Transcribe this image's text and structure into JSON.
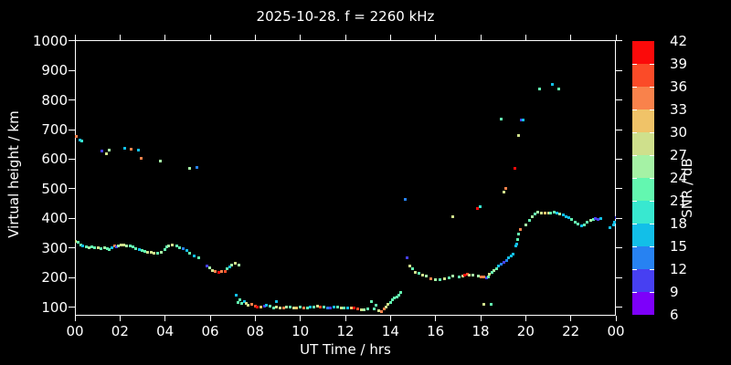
{
  "window": {
    "background": "#000000",
    "foreground": "#ffffff"
  },
  "chart_data": {
    "type": "scatter",
    "title": "2025-10-28. f = 2260 kHz",
    "xlabel": "UT Time / hrs",
    "ylabel": "Virtual height / km",
    "grid": false,
    "x_axis": {
      "range_hours": [
        0,
        24
      ],
      "tick_hours": [
        0,
        2,
        4,
        6,
        8,
        10,
        12,
        14,
        16,
        18,
        20,
        22,
        24
      ],
      "tick_labels": [
        "00",
        "02",
        "04",
        "06",
        "08",
        "10",
        "12",
        "14",
        "16",
        "18",
        "20",
        "22",
        "00"
      ]
    },
    "y_axis": {
      "range_km_at_ticks": [
        100,
        1000
      ],
      "tick_km": [
        100,
        200,
        300,
        400,
        500,
        600,
        700,
        800,
        900,
        1000
      ],
      "tick_labels": [
        "100",
        "200",
        "300",
        "400",
        "500",
        "600",
        "700",
        "800",
        "900",
        "1000"
      ]
    },
    "colorbar": {
      "label": "SNR / dB",
      "min": 6,
      "max": 42,
      "step": 3,
      "tick_labels": [
        "42",
        "39",
        "36",
        "33",
        "30",
        "27",
        "24",
        "21",
        "18",
        "15",
        "12",
        "9",
        "6"
      ],
      "colors_top_to_bottom": [
        "#fb0a0a",
        "#fb4b28",
        "#f9824b",
        "#f0c368",
        "#cfe08c",
        "#a5f2a5",
        "#63f7b0",
        "#38e8d0",
        "#12bfe8",
        "#2782f2",
        "#4740f2",
        "#7d00fa"
      ]
    },
    "points_hour_km_snr": [
      [
        0.02,
        322,
        28.5
      ],
      [
        0.15,
        318,
        22.5
      ],
      [
        0.26,
        311,
        22.5
      ],
      [
        0.36,
        306,
        16.5
      ],
      [
        0.49,
        304,
        22.5
      ],
      [
        0.62,
        301,
        25.5
      ],
      [
        0.76,
        304,
        22.5
      ],
      [
        0.89,
        301,
        22.5
      ],
      [
        1.03,
        301,
        28.5
      ],
      [
        1.16,
        297,
        22.5
      ],
      [
        1.3,
        301,
        25.5
      ],
      [
        1.42,
        297,
        22.5
      ],
      [
        1.53,
        296,
        22.5
      ],
      [
        1.66,
        300,
        16.5
      ],
      [
        1.77,
        306,
        34.5
      ],
      [
        1.84,
        303,
        10.5
      ],
      [
        1.93,
        308,
        25.5
      ],
      [
        2.04,
        311,
        28.5
      ],
      [
        2.18,
        311,
        28.5
      ],
      [
        2.3,
        308,
        25.5
      ],
      [
        2.44,
        306,
        22.5
      ],
      [
        2.58,
        303,
        22.5
      ],
      [
        2.7,
        298,
        22.5
      ],
      [
        2.85,
        294,
        16.5
      ],
      [
        2.99,
        291,
        22.5
      ],
      [
        3.12,
        288,
        22.5
      ],
      [
        3.23,
        285,
        28.5
      ],
      [
        3.37,
        285,
        28.5
      ],
      [
        3.5,
        283,
        28.5
      ],
      [
        3.67,
        283,
        22.5
      ],
      [
        3.84,
        286,
        25.5
      ],
      [
        4.0,
        296,
        22.5
      ],
      [
        4.08,
        304,
        22.5
      ],
      [
        4.16,
        307,
        25.5
      ],
      [
        4.3,
        311,
        28.5
      ],
      [
        4.5,
        308,
        22.5
      ],
      [
        4.66,
        301,
        22.5
      ],
      [
        4.82,
        298,
        13.5
      ],
      [
        4.96,
        291,
        16.5
      ],
      [
        5.1,
        282,
        22.5
      ],
      [
        5.3,
        273,
        16.5
      ],
      [
        5.5,
        266,
        22.5
      ],
      [
        5.84,
        239,
        10.5
      ],
      [
        5.96,
        232,
        25.5
      ],
      [
        6.1,
        224,
        28.5
      ],
      [
        6.24,
        220,
        34.5
      ],
      [
        6.37,
        217,
        40.5
      ],
      [
        6.5,
        220,
        34.5
      ],
      [
        6.65,
        222,
        37.5
      ],
      [
        6.77,
        229,
        22.5
      ],
      [
        6.88,
        235,
        16.5
      ],
      [
        6.97,
        243,
        25.5
      ],
      [
        7.12,
        248,
        28.5
      ],
      [
        7.26,
        243,
        25.5
      ],
      [
        7.15,
        140,
        16.5
      ],
      [
        7.22,
        116,
        22.5
      ],
      [
        7.3,
        125,
        22.5
      ],
      [
        7.38,
        113,
        22.5
      ],
      [
        7.5,
        119,
        16.5
      ],
      [
        7.6,
        112,
        28.5
      ],
      [
        7.7,
        106,
        28.5
      ],
      [
        7.85,
        109,
        34.5
      ],
      [
        8.0,
        103,
        37.5
      ],
      [
        8.1,
        101,
        40.5
      ],
      [
        8.25,
        100,
        31.5
      ],
      [
        8.4,
        103,
        10.5
      ],
      [
        8.5,
        106,
        16.5
      ],
      [
        8.67,
        103,
        22.5
      ],
      [
        8.8,
        98,
        22.5
      ],
      [
        8.95,
        118,
        16.5
      ],
      [
        8.95,
        101,
        28.5
      ],
      [
        9.1,
        97,
        28.5
      ],
      [
        9.25,
        99,
        34.5
      ],
      [
        9.4,
        101,
        25.5
      ],
      [
        9.55,
        100,
        22.5
      ],
      [
        9.7,
        97,
        28.5
      ],
      [
        9.85,
        99,
        31.5
      ],
      [
        10.0,
        100,
        22.5
      ],
      [
        10.15,
        98,
        34.5
      ],
      [
        10.3,
        97,
        22.5
      ],
      [
        10.45,
        100,
        16.5
      ],
      [
        10.6,
        102,
        22.5
      ],
      [
        10.75,
        103,
        28.5
      ],
      [
        10.9,
        100,
        37.5
      ],
      [
        11.05,
        100,
        22.5
      ],
      [
        11.2,
        97,
        13.5
      ],
      [
        11.35,
        97,
        10.5
      ],
      [
        11.5,
        100,
        16.5
      ],
      [
        11.65,
        100,
        22.5
      ],
      [
        11.8,
        98,
        28.5
      ],
      [
        11.95,
        97,
        22.5
      ],
      [
        12.1,
        99,
        16.5
      ],
      [
        12.25,
        97,
        31.5
      ],
      [
        12.4,
        97,
        40.5
      ],
      [
        12.55,
        94,
        37.5
      ],
      [
        12.7,
        92,
        28.5
      ],
      [
        12.85,
        91,
        25.5
      ],
      [
        13.0,
        93,
        22.5
      ],
      [
        13.15,
        118,
        22.5
      ],
      [
        13.27,
        94,
        22.5
      ],
      [
        13.37,
        106,
        22.5
      ],
      [
        13.47,
        89,
        28.5
      ],
      [
        13.6,
        86,
        34.5
      ],
      [
        13.74,
        94,
        34.5
      ],
      [
        13.8,
        102,
        28.5
      ],
      [
        13.87,
        109,
        28.5
      ],
      [
        14.0,
        116,
        22.5
      ],
      [
        14.08,
        124,
        22.5
      ],
      [
        14.18,
        132,
        22.5
      ],
      [
        14.3,
        136,
        22.5
      ],
      [
        14.38,
        142,
        22.5
      ],
      [
        14.45,
        149,
        22.5
      ],
      [
        14.73,
        268,
        10.5
      ],
      [
        14.85,
        239,
        28.5
      ],
      [
        14.96,
        229,
        22.5
      ],
      [
        15.1,
        219,
        28.5
      ],
      [
        15.26,
        214,
        22.5
      ],
      [
        15.44,
        208,
        28.5
      ],
      [
        15.6,
        204,
        25.5
      ],
      [
        15.8,
        196,
        34.5
      ],
      [
        16.0,
        193,
        25.5
      ],
      [
        16.2,
        193,
        22.5
      ],
      [
        16.4,
        195,
        28.5
      ],
      [
        16.6,
        199,
        22.5
      ],
      [
        16.75,
        204,
        25.5
      ],
      [
        17.05,
        203,
        22.5
      ],
      [
        17.2,
        205,
        28.5
      ],
      [
        17.3,
        208,
        40.5
      ],
      [
        17.4,
        213,
        37.5
      ],
      [
        17.5,
        210,
        28.5
      ],
      [
        17.66,
        208,
        25.5
      ],
      [
        17.9,
        205,
        25.5
      ],
      [
        18.0,
        203,
        34.5
      ],
      [
        18.15,
        201,
        34.5
      ],
      [
        18.25,
        198,
        10.5
      ],
      [
        18.35,
        203,
        22.5
      ],
      [
        18.4,
        211,
        28.5
      ],
      [
        18.5,
        218,
        22.5
      ],
      [
        18.6,
        225,
        25.5
      ],
      [
        18.7,
        231,
        22.5
      ],
      [
        18.8,
        239,
        16.5
      ],
      [
        18.9,
        246,
        13.5
      ],
      [
        19.05,
        252,
        10.5
      ],
      [
        19.15,
        259,
        13.5
      ],
      [
        19.25,
        266,
        16.5
      ],
      [
        19.35,
        272,
        16.5
      ],
      [
        19.45,
        280,
        16.5
      ],
      [
        19.55,
        306,
        16.5
      ],
      [
        19.6,
        312,
        16.5
      ],
      [
        19.65,
        328,
        22.5
      ],
      [
        19.7,
        347,
        22.5
      ],
      [
        19.75,
        363,
        34.5
      ],
      [
        20.0,
        378,
        25.5
      ],
      [
        20.15,
        393,
        22.5
      ],
      [
        20.3,
        405,
        25.5
      ],
      [
        20.42,
        414,
        22.5
      ],
      [
        20.55,
        420,
        25.5
      ],
      [
        20.7,
        417,
        28.5
      ],
      [
        20.84,
        419,
        31.5
      ],
      [
        21.0,
        417,
        28.5
      ],
      [
        21.1,
        419,
        22.5
      ],
      [
        21.25,
        422,
        22.5
      ],
      [
        21.4,
        419,
        16.5
      ],
      [
        21.52,
        416,
        25.5
      ],
      [
        21.65,
        412,
        16.5
      ],
      [
        21.8,
        407,
        16.5
      ],
      [
        21.92,
        402,
        16.5
      ],
      [
        22.05,
        396,
        22.5
      ],
      [
        22.2,
        388,
        22.5
      ],
      [
        22.32,
        381,
        22.5
      ],
      [
        22.46,
        376,
        16.5
      ],
      [
        22.6,
        378,
        22.5
      ],
      [
        22.72,
        386,
        22.5
      ],
      [
        22.87,
        392,
        25.5
      ],
      [
        23.0,
        396,
        22.5
      ],
      [
        23.1,
        399,
        10.5
      ],
      [
        23.2,
        396,
        10.5
      ],
      [
        23.32,
        399,
        16.5
      ],
      [
        23.75,
        368,
        16.5
      ],
      [
        23.9,
        378,
        16.5
      ],
      [
        23.95,
        388,
        16.5
      ],
      [
        24.0,
        404,
        10.5
      ],
      [
        0.08,
        676,
        34.5
      ],
      [
        0.24,
        665,
        16.5
      ],
      [
        0.32,
        662,
        19.5
      ],
      [
        1.18,
        627,
        10.5
      ],
      [
        1.38,
        617,
        28.5
      ],
      [
        1.54,
        630,
        25.5
      ],
      [
        2.2,
        638,
        16.5
      ],
      [
        2.5,
        635,
        34.5
      ],
      [
        2.8,
        630,
        16.5
      ],
      [
        2.95,
        604,
        34.5
      ],
      [
        3.8,
        595,
        25.5
      ],
      [
        5.1,
        568,
        25.5
      ],
      [
        5.43,
        571,
        13.5
      ],
      [
        14.65,
        463,
        13.5
      ],
      [
        16.75,
        406,
        28.5
      ],
      [
        17.87,
        432,
        40.5
      ],
      [
        17.97,
        440,
        19.5
      ],
      [
        18.13,
        111,
        28.5
      ],
      [
        18.47,
        111,
        22.5
      ],
      [
        18.9,
        737,
        22.5
      ],
      [
        19.05,
        489,
        28.5
      ],
      [
        19.12,
        501,
        34.5
      ],
      [
        19.5,
        568,
        40.5
      ],
      [
        19.68,
        681,
        28.5
      ],
      [
        19.8,
        732,
        10.5
      ],
      [
        19.87,
        734,
        16.5
      ],
      [
        20.6,
        837,
        22.5
      ],
      [
        21.2,
        852,
        16.5
      ],
      [
        21.45,
        836,
        22.5
      ]
    ]
  }
}
